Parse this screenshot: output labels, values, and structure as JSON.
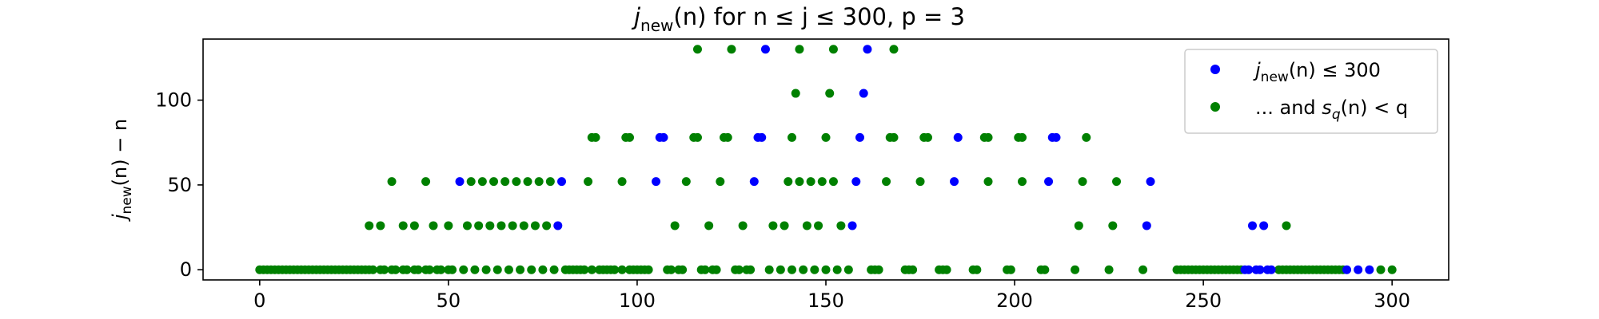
{
  "chart_data": {
    "type": "scatter",
    "title": "j_new(n) for n ≤ j ≤ 300, p = 3",
    "title_parts": {
      "j": "j",
      "sub": "new",
      "rest": "(n) for n ≤ j ≤ 300, p = 3"
    },
    "xlabel": "",
    "ylabel": "j_new(n) − n",
    "ylabel_parts": {
      "j": "j",
      "sub": "new",
      "rest": "(n) − n"
    },
    "xlim": [
      -15,
      315
    ],
    "ylim": [
      -6,
      136
    ],
    "xticks": [
      0,
      50,
      100,
      150,
      200,
      250,
      300
    ],
    "yticks": [
      0,
      50,
      100
    ],
    "grid": false,
    "legend_position": "top-right",
    "legend": [
      {
        "label": "j_new(n) ≤ 300",
        "label_parts": {
          "j": "j",
          "sub": "new",
          "rest": "(n) ≤ 300"
        },
        "color": "#0000ff"
      },
      {
        "label": "... and s_q(n) < q",
        "label_parts": {
          "pre": "... and ",
          "s": "s",
          "sub": "q",
          "rest": "(n) < q"
        },
        "color": "#008000"
      }
    ],
    "series": [
      {
        "color": "#0000ff",
        "points": [
          [
            53,
            52
          ],
          [
            80,
            52
          ],
          [
            79,
            26
          ],
          [
            105,
            52
          ],
          [
            106,
            78
          ],
          [
            107,
            78
          ],
          [
            131,
            52
          ],
          [
            132,
            78
          ],
          [
            133,
            78
          ],
          [
            134,
            130
          ],
          [
            157,
            26
          ],
          [
            158,
            52
          ],
          [
            159,
            78
          ],
          [
            160,
            104
          ],
          [
            161,
            130
          ],
          [
            184,
            52
          ],
          [
            185,
            78
          ],
          [
            209,
            52
          ],
          [
            210,
            78
          ],
          [
            211,
            78
          ],
          [
            235,
            26
          ],
          [
            236,
            52
          ],
          [
            261,
            0
          ],
          [
            262,
            0
          ],
          [
            263,
            26
          ],
          [
            264,
            0
          ],
          [
            265,
            0
          ],
          [
            266,
            26
          ],
          [
            267,
            0
          ],
          [
            268,
            0
          ],
          [
            288,
            0
          ],
          [
            291,
            0
          ],
          [
            294,
            0
          ]
        ]
      },
      {
        "color": "#008000",
        "points_rows": [
          {
            "y": 0,
            "x": [
              0,
              1,
              2,
              3,
              4,
              5,
              6,
              7,
              8,
              9,
              10,
              11,
              12,
              13,
              14,
              15,
              16,
              17,
              18,
              19,
              20,
              21,
              22,
              23,
              24,
              25,
              26,
              27,
              28,
              29,
              30,
              32,
              33,
              35,
              36,
              38,
              39,
              41,
              42,
              44,
              45,
              47,
              48,
              50,
              51,
              54,
              57,
              60,
              63,
              66,
              69,
              72,
              75,
              78,
              81,
              82,
              83,
              84,
              85,
              86,
              88,
              90,
              91,
              92,
              93,
              94,
              96,
              98,
              99,
              100,
              101,
              102,
              103,
              108,
              109,
              111,
              112,
              117,
              118,
              120,
              121,
              126,
              127,
              129,
              130,
              135,
              138,
              141,
              144,
              147,
              150,
              153,
              156,
              162,
              163,
              164,
              171,
              172,
              173,
              180,
              181,
              182,
              189,
              190,
              198,
              199,
              207,
              208,
              216,
              225,
              234,
              243,
              244,
              245,
              246,
              247,
              248,
              249,
              250,
              251,
              252,
              253,
              254,
              255,
              256,
              257,
              258,
              259,
              260,
              270,
              271,
              272,
              273,
              274,
              275,
              276,
              277,
              278,
              279,
              280,
              281,
              282,
              283,
              284,
              285,
              286,
              287,
              297,
              300
            ]
          },
          {
            "y": 26,
            "x": [
              29,
              32,
              38,
              41,
              46,
              50,
              55,
              58,
              61,
              64,
              67,
              70,
              73,
              76,
              110,
              119,
              128,
              136,
              139,
              145,
              148,
              154,
              217,
              226,
              272
            ]
          },
          {
            "y": 52,
            "x": [
              35,
              44,
              56,
              59,
              62,
              65,
              68,
              71,
              74,
              77,
              87,
              96,
              113,
              122,
              140,
              143,
              146,
              149,
              152,
              166,
              175,
              193,
              202,
              218,
              227
            ]
          },
          {
            "y": 78,
            "x": [
              88,
              89,
              97,
              98,
              115,
              116,
              123,
              124,
              141,
              150,
              167,
              168,
              176,
              177,
              192,
              193,
              201,
              202,
              219
            ]
          },
          {
            "y": 104,
            "x": [
              142,
              151
            ]
          },
          {
            "y": 130,
            "x": [
              116,
              125,
              143,
              152,
              168
            ]
          }
        ]
      }
    ]
  }
}
